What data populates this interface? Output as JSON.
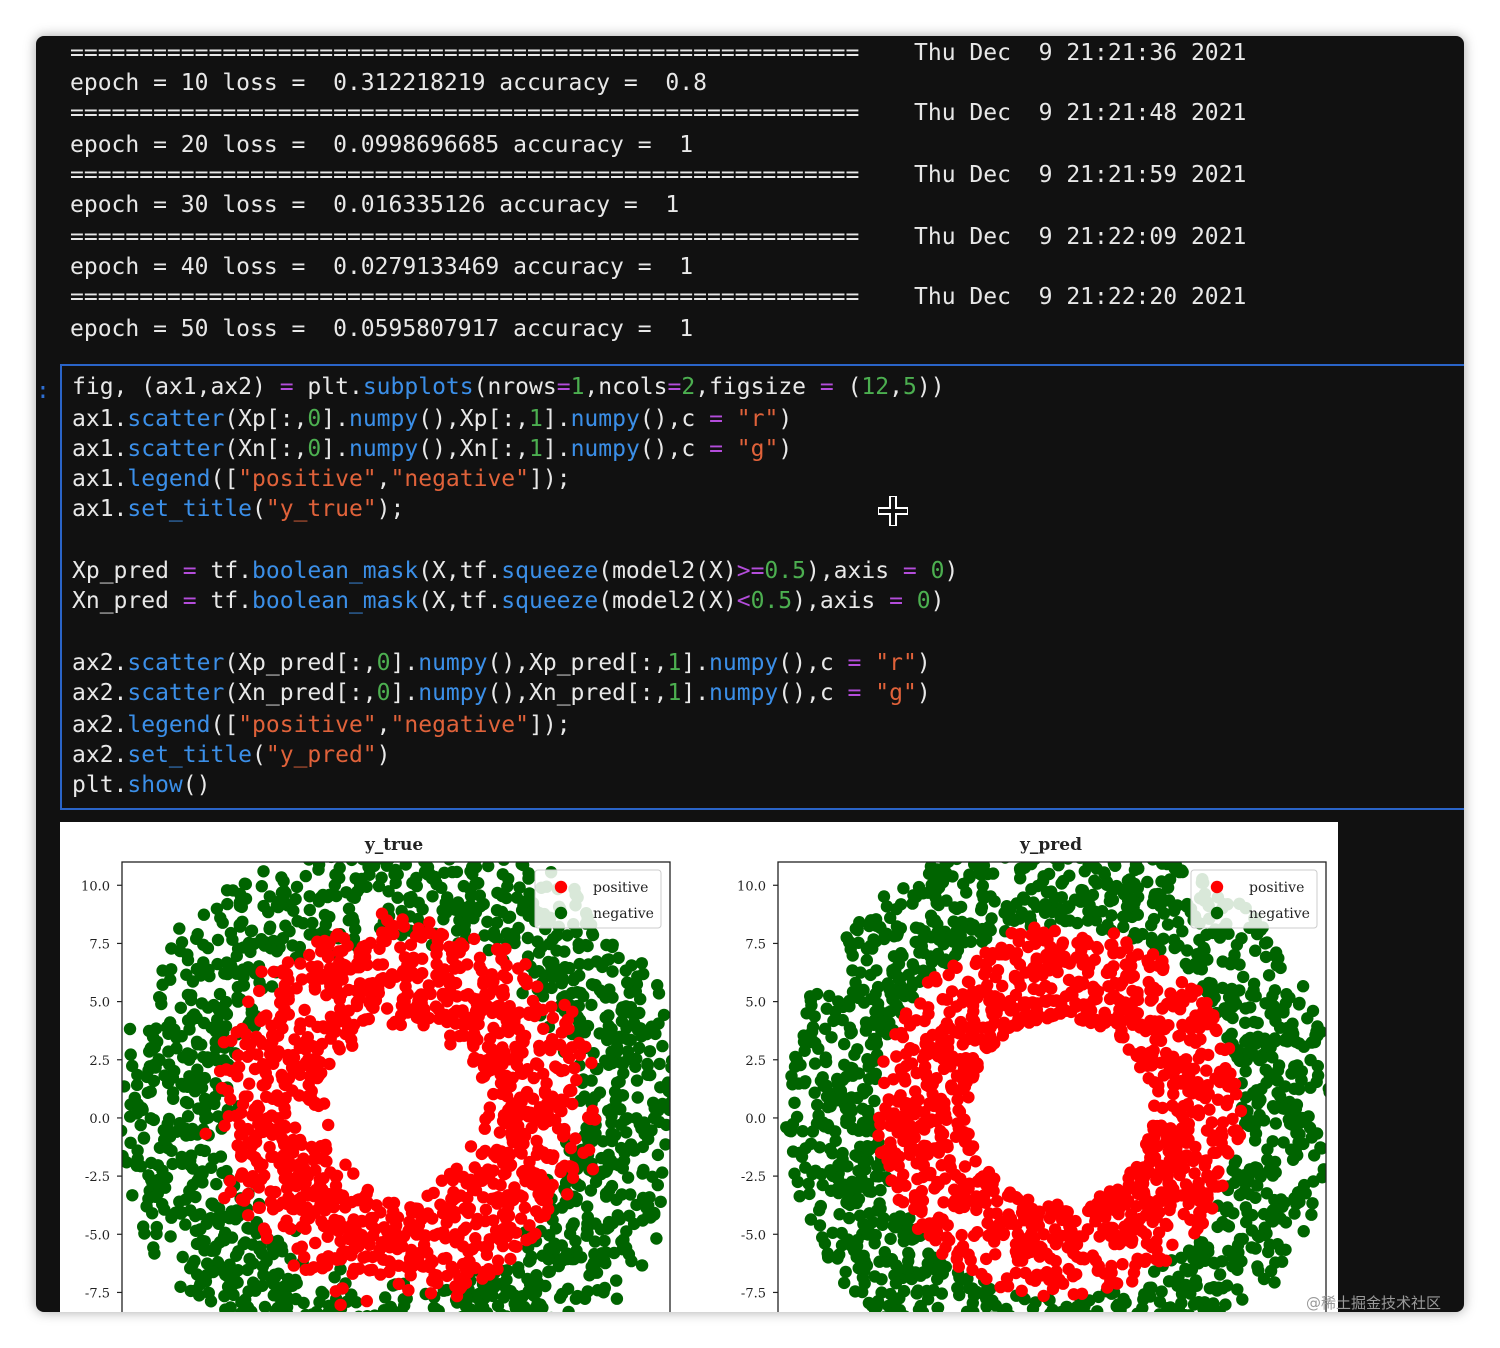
{
  "output": {
    "separator": "=========================================================",
    "epochs": [
      {
        "line": "epoch = 10 loss =  0.312218219 accuracy =  0.8",
        "timestamp": "Thu Dec  9 21:21:36 2021"
      },
      {
        "line": "epoch = 20 loss =  0.0998696685 accuracy =  1",
        "timestamp": "Thu Dec  9 21:21:48 2021"
      },
      {
        "line": "epoch = 30 loss =  0.016335126 accuracy =  1",
        "timestamp": "Thu Dec  9 21:21:59 2021"
      },
      {
        "line": "epoch = 40 loss =  0.0279133469 accuracy =  1",
        "timestamp": "Thu Dec  9 21:22:09 2021"
      },
      {
        "line": "epoch = 50 loss =  0.0595807917 accuracy =  1",
        "timestamp": "Thu Dec  9 21:22:20 2021"
      }
    ]
  },
  "cell": {
    "prompt": ":",
    "code_lines": [
      "fig, (ax1,ax2) = plt.subplots(nrows=1,ncols=2,figsize = (12,5))",
      "ax1.scatter(Xp[:,0].numpy(),Xp[:,1].numpy(),c = \"r\")",
      "ax1.scatter(Xn[:,0].numpy(),Xn[:,1].numpy(),c = \"g\")",
      "ax1.legend([\"positive\",\"negative\"]);",
      "ax1.set_title(\"y_true\");",
      "",
      "Xp_pred = tf.boolean_mask(X,tf.squeeze(model2(X)>=0.5),axis = 0)",
      "Xn_pred = tf.boolean_mask(X,tf.squeeze(model2(X)<0.5),axis = 0)",
      "",
      "ax2.scatter(Xp_pred[:,0].numpy(),Xp_pred[:,1].numpy(),c = \"r\")",
      "ax2.scatter(Xn_pred[:,0].numpy(),Xn_pred[:,1].numpy(),c = \"g\")",
      "ax2.legend([\"positive\",\"negative\"]);",
      "ax2.set_title(\"y_pred\")",
      "plt.show()"
    ]
  },
  "chart_data": [
    {
      "type": "scatter",
      "title": "y_true",
      "xlabel": "",
      "ylabel": "",
      "ytick_labels": [
        "10.0",
        "7.5",
        "5.0",
        "2.5",
        "0.0",
        "-2.5",
        "-5.0",
        "-7.5"
      ],
      "yticks": [
        10.0,
        7.5,
        5.0,
        2.5,
        0.0,
        -2.5,
        -5.0,
        -7.5
      ],
      "ylim": [
        -9.2,
        11.0
      ],
      "xlim": [
        -12,
        12
      ],
      "legend": {
        "placement": "top-right",
        "entries": [
          "positive",
          "negative"
        ]
      },
      "series": [
        {
          "name": "positive",
          "color": "#ff0000",
          "shape": "ring",
          "radius_range": [
            4.0,
            8.0
          ]
        },
        {
          "name": "negative",
          "color": "#006400",
          "shape": "ring",
          "radius_range": [
            8.0,
            12.0
          ]
        }
      ]
    },
    {
      "type": "scatter",
      "title": "y_pred",
      "xlabel": "",
      "ylabel": "",
      "ytick_labels": [
        "10.0",
        "7.5",
        "5.0",
        "2.5",
        "0.0",
        "-2.5",
        "-5.0",
        "-7.5"
      ],
      "yticks": [
        10.0,
        7.5,
        5.0,
        2.5,
        0.0,
        -2.5,
        -5.0,
        -7.5
      ],
      "ylim": [
        -9.2,
        11.0
      ],
      "xlim": [
        -12,
        12
      ],
      "legend": {
        "placement": "top-right",
        "entries": [
          "positive",
          "negative"
        ]
      },
      "series": [
        {
          "name": "positive",
          "color": "#ff0000",
          "shape": "ring",
          "radius_range": [
            4.0,
            8.0
          ]
        },
        {
          "name": "negative",
          "color": "#006400",
          "shape": "ring",
          "radius_range": [
            8.0,
            12.0
          ]
        }
      ]
    }
  ],
  "watermark": "@稀土掘金技术社区"
}
